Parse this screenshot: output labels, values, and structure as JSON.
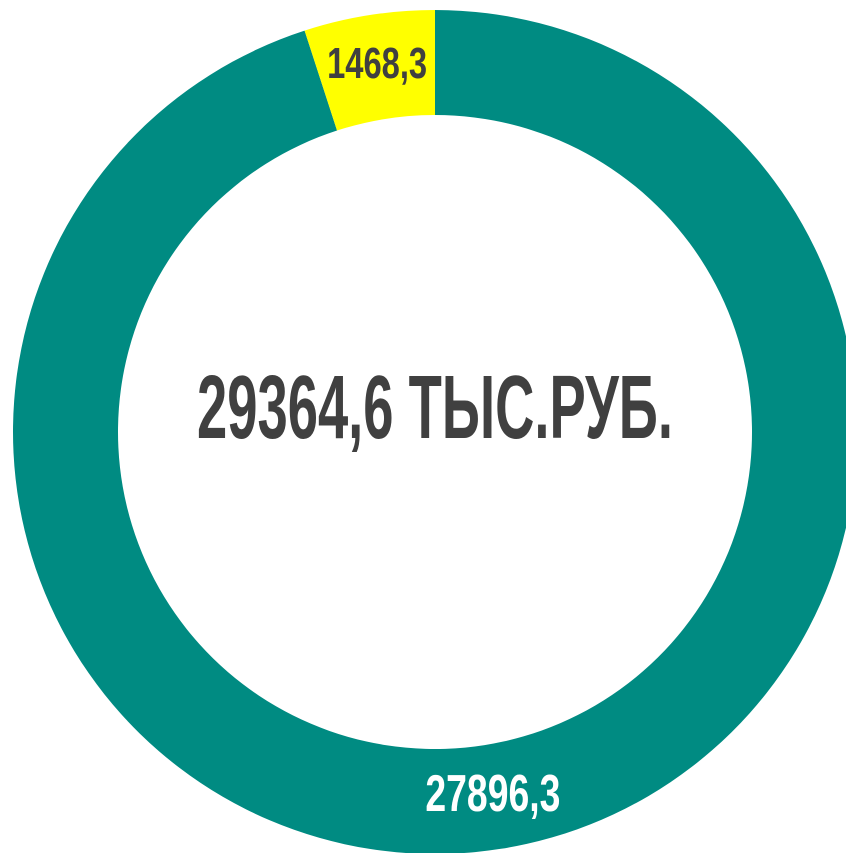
{
  "chart_data": {
    "type": "donut",
    "categories": [
      "27896,3",
      "1468,3"
    ],
    "values": [
      27896.3,
      1468.3
    ],
    "value_labels": [
      "27896,3",
      "1468,3"
    ],
    "colors": [
      "#008b82",
      "#ffff00"
    ],
    "label_colors": [
      "#ffffff",
      "#404040"
    ],
    "center_label": "29364,6 ТЫС.РУБ."
  }
}
